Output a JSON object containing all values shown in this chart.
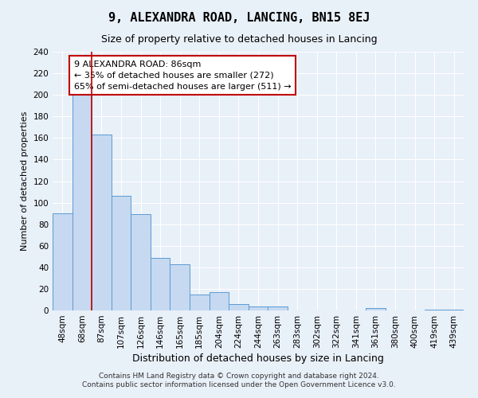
{
  "title": "9, ALEXANDRA ROAD, LANCING, BN15 8EJ",
  "subtitle": "Size of property relative to detached houses in Lancing",
  "xlabel": "Distribution of detached houses by size in Lancing",
  "ylabel": "Number of detached properties",
  "footer_lines": [
    "Contains HM Land Registry data © Crown copyright and database right 2024.",
    "Contains public sector information licensed under the Open Government Licence v3.0."
  ],
  "bar_labels": [
    "48sqm",
    "68sqm",
    "87sqm",
    "107sqm",
    "126sqm",
    "146sqm",
    "165sqm",
    "185sqm",
    "204sqm",
    "224sqm",
    "244sqm",
    "263sqm",
    "283sqm",
    "302sqm",
    "322sqm",
    "341sqm",
    "361sqm",
    "380sqm",
    "400sqm",
    "419sqm",
    "439sqm"
  ],
  "bar_values": [
    90,
    200,
    163,
    106,
    89,
    49,
    43,
    15,
    17,
    6,
    4,
    4,
    0,
    0,
    0,
    0,
    2,
    0,
    0,
    1,
    1
  ],
  "bar_color": "#c6d9f0",
  "bar_edge_color": "#5b9bd5",
  "vline_x": 1.5,
  "vline_color": "#c00000",
  "ylim": [
    0,
    240
  ],
  "yticks": [
    0,
    20,
    40,
    60,
    80,
    100,
    120,
    140,
    160,
    180,
    200,
    220,
    240
  ],
  "annotation_box_text": "9 ALEXANDRA ROAD: 86sqm\n← 35% of detached houses are smaller (272)\n65% of semi-detached houses are larger (511) →",
  "annotation_box_edge_color": "#c00000",
  "annotation_box_face_color": "#ffffff",
  "background_color": "#e8f0f8",
  "grid_color": "#ffffff",
  "title_fontsize": 11,
  "subtitle_fontsize": 9,
  "annotation_fontsize": 8,
  "xlabel_fontsize": 9,
  "ylabel_fontsize": 8,
  "tick_fontsize": 7.5,
  "footer_fontsize": 6.5
}
